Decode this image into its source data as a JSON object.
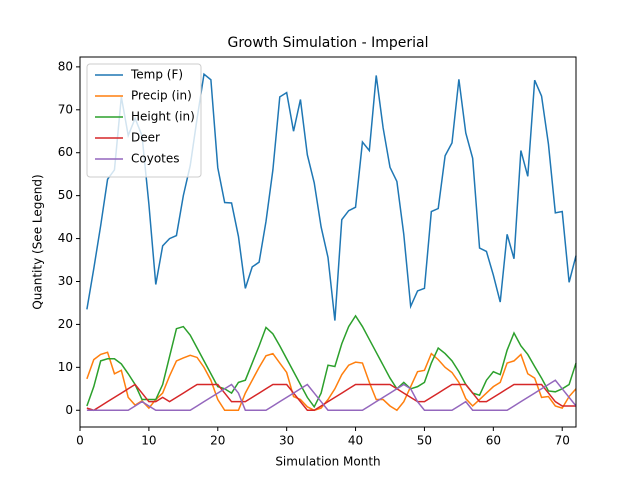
{
  "chart_data": {
    "type": "line",
    "title": "Growth Simulation - Imperial",
    "x_label": "Simulation Month",
    "y_label": "Quantity (See Legend)",
    "x": [
      1,
      2,
      3,
      4,
      5,
      6,
      7,
      8,
      9,
      10,
      11,
      12,
      13,
      14,
      15,
      16,
      17,
      18,
      19,
      20,
      21,
      22,
      23,
      24,
      25,
      26,
      27,
      28,
      29,
      30,
      31,
      32,
      33,
      34,
      35,
      36,
      37,
      38,
      39,
      40,
      41,
      42,
      43,
      44,
      45,
      46,
      47,
      48,
      49,
      50,
      51,
      52,
      53,
      54,
      55,
      56,
      57,
      58,
      59,
      60,
      61,
      62,
      63,
      64,
      65,
      66,
      67,
      68,
      69,
      70,
      71,
      72
    ],
    "series": [
      {
        "name": "Temp (F)",
        "color": "#1f77b4",
        "values": [
          23.5,
          33,
          43,
          53.8,
          56,
          73,
          64,
          68,
          64,
          48,
          29.3,
          38.3,
          40,
          40.7,
          50,
          57,
          68,
          78.3,
          77,
          56.5,
          48.4,
          48.3,
          40.5,
          28.4,
          33.4,
          34.5,
          44,
          56,
          73,
          74,
          65,
          72.4,
          59.5,
          53,
          42.7,
          35.6,
          20.9,
          44.4,
          46.5,
          47.3,
          62.5,
          60.5,
          78,
          65.8,
          56.6,
          53.3,
          41,
          24.2,
          27.8,
          28.4,
          46.3,
          47,
          59.3,
          62.3,
          77.1,
          64.6,
          58.7,
          37.8,
          37,
          31.5,
          25.2,
          41,
          35.3,
          60.5,
          54.5,
          76.9,
          73.2,
          62,
          46,
          46.3,
          29.8,
          36
        ]
      },
      {
        "name": "Precip (in)",
        "color": "#ff7f0e",
        "values": [
          7.3,
          11.8,
          13,
          13.5,
          8.5,
          9.3,
          3,
          1.2,
          2.2,
          0.5,
          2.5,
          4,
          8,
          11.5,
          12.2,
          12.8,
          12.3,
          10,
          7,
          2.5,
          0,
          0,
          0,
          4,
          7,
          10,
          12.7,
          13.2,
          11,
          8.8,
          3.2,
          2.5,
          0.8,
          0,
          0.5,
          2.5,
          5,
          8.3,
          10.5,
          11.2,
          11,
          6.5,
          2.5,
          2.5,
          1,
          0,
          2,
          5.5,
          9,
          9.3,
          13.2,
          11.8,
          10,
          8.8,
          6.5,
          2.7,
          1,
          2.5,
          4,
          5.5,
          6.5,
          11,
          11.5,
          13,
          8.5,
          7.5,
          3,
          3.2,
          1,
          0.5,
          3.2,
          5
        ]
      },
      {
        "name": "Height (in)",
        "color": "#2ca02c",
        "values": [
          1,
          5.5,
          11.5,
          12,
          12,
          10.8,
          8.5,
          6,
          2.5,
          2.5,
          2.5,
          6,
          12.5,
          19,
          19.5,
          17.5,
          14.5,
          11.5,
          8.5,
          5.5,
          5,
          4,
          6.5,
          7,
          11,
          15,
          19.3,
          17.8,
          15,
          12,
          9,
          6,
          3,
          0.8,
          4,
          10.5,
          10.2,
          15.5,
          19.5,
          22,
          19.5,
          16.5,
          13.5,
          10.5,
          7.5,
          5,
          6.5,
          5,
          5.5,
          6.5,
          11,
          14.5,
          13.2,
          11.5,
          9,
          6,
          4,
          3.5,
          7,
          9,
          8.3,
          14,
          18,
          15,
          13,
          10.2,
          7.5,
          4.5,
          4.3,
          5,
          6,
          11
        ]
      },
      {
        "name": "Deer",
        "color": "#d62728",
        "values": [
          0.5,
          0,
          1,
          2,
          3,
          4,
          5,
          6,
          4,
          2,
          2,
          3,
          2,
          3,
          4,
          5,
          6,
          6,
          6,
          6,
          4,
          2,
          2,
          2,
          3,
          4,
          5,
          6,
          6,
          6,
          4,
          2,
          0,
          0,
          1,
          2,
          3,
          4,
          5,
          6,
          6,
          6,
          6,
          6,
          6,
          5,
          4,
          3,
          2,
          2,
          3,
          4,
          5,
          6,
          6,
          6,
          4,
          2,
          2,
          3,
          4,
          5,
          6,
          6,
          6,
          6,
          6,
          4,
          2,
          1,
          1,
          1
        ]
      },
      {
        "name": "Coyotes",
        "color": "#9467bd",
        "values": [
          0,
          0,
          0,
          0,
          0,
          0,
          0,
          1,
          2,
          1,
          0,
          0,
          0,
          0,
          0,
          0,
          1,
          2,
          3,
          4,
          5,
          6,
          4,
          0,
          0,
          0,
          0,
          1,
          2,
          3,
          4,
          5,
          6,
          4,
          2,
          0,
          0,
          0,
          0,
          0,
          0,
          1,
          2,
          3,
          4,
          5,
          6,
          5,
          2,
          0,
          0,
          0,
          0,
          0,
          1,
          2,
          0,
          0,
          0,
          0,
          0,
          0,
          1,
          2,
          3,
          4,
          5,
          6,
          7,
          5,
          3,
          1
        ]
      }
    ],
    "xlim": [
      0,
      72
    ],
    "xticks": [
      0,
      10,
      20,
      30,
      40,
      50,
      60,
      70
    ],
    "ylim": [
      -3.9,
      82.3
    ],
    "yticks": [
      0,
      10,
      20,
      30,
      40,
      50,
      60,
      70,
      80
    ],
    "legend": "upper left"
  }
}
